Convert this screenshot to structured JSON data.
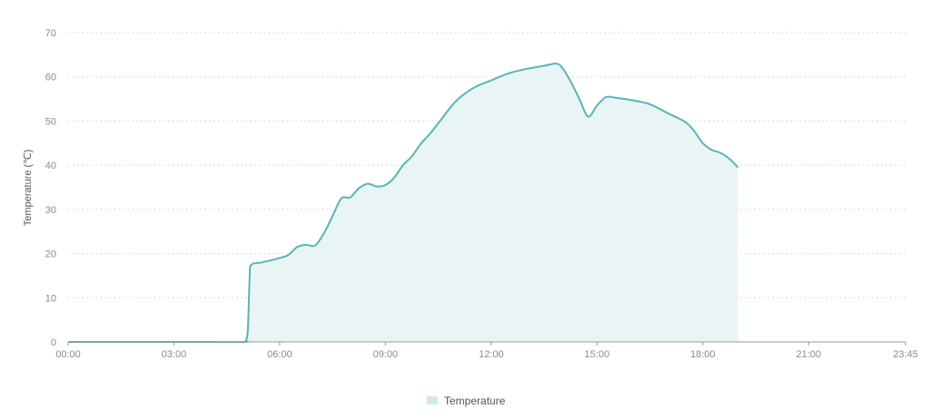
{
  "chart_data": {
    "type": "area",
    "ylabel": "Temperature (℃)",
    "ylim": [
      0,
      70
    ],
    "yticks": [
      0,
      10,
      20,
      30,
      40,
      50,
      60,
      70
    ],
    "xlim_minutes": [
      0,
      1425
    ],
    "xticks": [
      {
        "label": "00:00",
        "minutes": 0
      },
      {
        "label": "03:00",
        "minutes": 180
      },
      {
        "label": "06:00",
        "minutes": 360
      },
      {
        "label": "09:00",
        "minutes": 540
      },
      {
        "label": "12:00",
        "minutes": 720
      },
      {
        "label": "15:00",
        "minutes": 900
      },
      {
        "label": "18:00",
        "minutes": 1080
      },
      {
        "label": "21:00",
        "minutes": 1260
      },
      {
        "label": "23:45",
        "minutes": 1425
      }
    ],
    "grid": true,
    "legend_position": "bottom-center",
    "series": [
      {
        "name": "Temperature",
        "color": "#5ab4b8",
        "fill": "#e9f5f5",
        "x": [
          "00:00",
          "01:00",
          "02:00",
          "03:00",
          "04:00",
          "05:00",
          "05:03",
          "05:06",
          "05:09",
          "05:12",
          "05:30",
          "06:00",
          "06:15",
          "06:30",
          "06:45",
          "07:00",
          "07:15",
          "07:30",
          "07:45",
          "08:00",
          "08:15",
          "08:30",
          "08:45",
          "09:00",
          "09:15",
          "09:30",
          "09:45",
          "10:00",
          "10:15",
          "10:30",
          "11:00",
          "11:30",
          "12:00",
          "12:30",
          "13:00",
          "13:30",
          "13:50",
          "14:00",
          "14:15",
          "14:30",
          "14:45",
          "15:00",
          "15:15",
          "15:30",
          "16:00",
          "16:30",
          "17:00",
          "17:30",
          "17:45",
          "18:00",
          "18:15",
          "18:30",
          "18:45",
          "19:00"
        ],
        "y": [
          0,
          0,
          0,
          0,
          0,
          0,
          0.5,
          3,
          15,
          17.5,
          18,
          19,
          19.7,
          21.5,
          22,
          21.8,
          24.5,
          28.5,
          32.5,
          32.7,
          34.8,
          35.8,
          35.2,
          35.5,
          37.2,
          40,
          42,
          44.8,
          47,
          49.5,
          54.5,
          57.5,
          59.2,
          60.8,
          61.8,
          62.5,
          63,
          62.2,
          59,
          55,
          51,
          53.5,
          55.4,
          55.3,
          54.7,
          53.8,
          51.8,
          49.8,
          47.8,
          45,
          43.5,
          42.8,
          41.5,
          39.5
        ]
      }
    ]
  }
}
